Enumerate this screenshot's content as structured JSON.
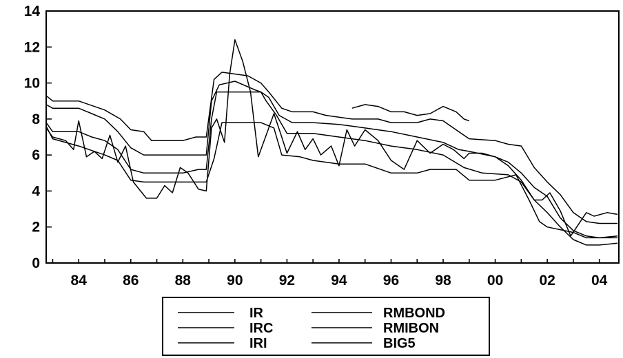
{
  "chart_data": {
    "type": "line",
    "title": "",
    "xlabel": "",
    "ylabel": "",
    "xlim": [
      1982.75,
      2004.75
    ],
    "ylim": [
      0,
      14
    ],
    "grid": false,
    "legend_position": "bottom-center",
    "x_tick_labels": [
      "84",
      "86",
      "88",
      "90",
      "92",
      "94",
      "96",
      "98",
      "00",
      "02",
      "04"
    ],
    "x_tick_values": [
      1984,
      1986,
      1988,
      1990,
      1992,
      1994,
      1996,
      1998,
      2000,
      2002,
      2004
    ],
    "y_tick_labels": [
      "0",
      "2",
      "4",
      "6",
      "8",
      "10",
      "12",
      "14"
    ],
    "y_tick_values": [
      0,
      2,
      4,
      6,
      8,
      10,
      12,
      14
    ],
    "line_color": "#000000",
    "series": [
      {
        "name": "IR",
        "points": [
          [
            1982.75,
            9.3
          ],
          [
            1983.0,
            9.0
          ],
          [
            1984.0,
            9.0
          ],
          [
            1985.0,
            8.5
          ],
          [
            1985.6,
            8.0
          ],
          [
            1986.0,
            7.4
          ],
          [
            1986.5,
            7.3
          ],
          [
            1986.8,
            6.8
          ],
          [
            1988.0,
            6.8
          ],
          [
            1988.5,
            7.0
          ],
          [
            1988.9,
            7.0
          ],
          [
            1989.2,
            10.2
          ],
          [
            1989.5,
            10.6
          ],
          [
            1990.5,
            10.4
          ],
          [
            1991.0,
            10.0
          ],
          [
            1991.3,
            9.5
          ],
          [
            1991.8,
            8.6
          ],
          [
            1992.2,
            8.4
          ],
          [
            1993.0,
            8.4
          ],
          [
            1993.5,
            8.2
          ],
          [
            1994.5,
            8.0
          ],
          [
            1995.5,
            8.0
          ],
          [
            1996.0,
            7.8
          ],
          [
            1997.0,
            7.8
          ],
          [
            1997.5,
            8.0
          ],
          [
            1998.0,
            7.9
          ],
          [
            1998.6,
            7.3
          ],
          [
            1999.0,
            6.9
          ],
          [
            2000.0,
            6.8
          ],
          [
            2000.5,
            6.6
          ],
          [
            2001.0,
            6.5
          ],
          [
            2001.5,
            5.3
          ],
          [
            2002.0,
            4.5
          ],
          [
            2002.5,
            3.8
          ],
          [
            2003.0,
            2.8
          ],
          [
            2003.5,
            2.3
          ],
          [
            2004.0,
            2.2
          ],
          [
            2004.7,
            2.2
          ]
        ]
      },
      {
        "name": "IRC",
        "points": [
          [
            1982.75,
            8.8
          ],
          [
            1983.0,
            8.6
          ],
          [
            1984.0,
            8.6
          ],
          [
            1984.5,
            8.3
          ],
          [
            1985.0,
            8.0
          ],
          [
            1985.5,
            7.3
          ],
          [
            1986.0,
            6.4
          ],
          [
            1986.5,
            6.0
          ],
          [
            1987.0,
            6.0
          ],
          [
            1988.0,
            6.0
          ],
          [
            1988.9,
            6.0
          ],
          [
            1989.1,
            9.0
          ],
          [
            1989.4,
            9.9
          ],
          [
            1990.0,
            10.1
          ],
          [
            1990.8,
            9.6
          ],
          [
            1991.0,
            9.5
          ],
          [
            1991.3,
            9.2
          ],
          [
            1991.7,
            8.2
          ],
          [
            1992.2,
            7.8
          ],
          [
            1993.0,
            7.8
          ],
          [
            1994.0,
            7.7
          ],
          [
            1995.0,
            7.5
          ],
          [
            1996.0,
            7.3
          ],
          [
            1997.0,
            7.0
          ],
          [
            1998.0,
            6.7
          ],
          [
            1998.6,
            6.3
          ],
          [
            1999.0,
            6.2
          ],
          [
            2000.0,
            5.9
          ],
          [
            2000.5,
            5.6
          ],
          [
            2001.0,
            5.0
          ],
          [
            2001.5,
            4.2
          ],
          [
            2002.0,
            3.7
          ],
          [
            2002.5,
            2.5
          ],
          [
            2003.0,
            1.8
          ],
          [
            2003.5,
            1.5
          ],
          [
            2004.0,
            1.4
          ],
          [
            2004.7,
            1.4
          ]
        ]
      },
      {
        "name": "IRI",
        "points": [
          [
            1982.75,
            7.8
          ],
          [
            1983.0,
            7.3
          ],
          [
            1984.0,
            7.3
          ],
          [
            1984.5,
            7.0
          ],
          [
            1985.0,
            6.8
          ],
          [
            1985.5,
            6.3
          ],
          [
            1986.0,
            5.2
          ],
          [
            1986.5,
            5.0
          ],
          [
            1988.0,
            5.0
          ],
          [
            1988.6,
            5.2
          ],
          [
            1988.9,
            5.2
          ],
          [
            1989.1,
            8.0
          ],
          [
            1989.3,
            9.5
          ],
          [
            1991.0,
            9.5
          ],
          [
            1991.2,
            9.0
          ],
          [
            1991.6,
            8.2
          ],
          [
            1992.0,
            7.2
          ],
          [
            1993.0,
            7.2
          ],
          [
            1994.0,
            7.0
          ],
          [
            1995.0,
            6.8
          ],
          [
            1996.0,
            6.5
          ],
          [
            1997.0,
            6.3
          ],
          [
            1998.0,
            6.0
          ],
          [
            1998.8,
            5.3
          ],
          [
            1999.5,
            5.0
          ],
          [
            2000.5,
            4.9
          ],
          [
            2001.0,
            4.5
          ],
          [
            2001.5,
            3.5
          ],
          [
            2002.0,
            2.8
          ],
          [
            2002.5,
            2.0
          ],
          [
            2003.0,
            1.3
          ],
          [
            2003.5,
            1.0
          ],
          [
            2004.0,
            1.0
          ],
          [
            2004.7,
            1.1
          ]
        ]
      },
      {
        "name": "RMBOND",
        "points": [
          [
            1982.75,
            7.5
          ],
          [
            1983.0,
            7.0
          ],
          [
            1983.5,
            6.8
          ],
          [
            1983.8,
            6.3
          ],
          [
            1984.0,
            7.9
          ],
          [
            1984.3,
            5.9
          ],
          [
            1984.6,
            6.2
          ],
          [
            1984.9,
            5.8
          ],
          [
            1985.2,
            7.1
          ],
          [
            1985.5,
            5.6
          ],
          [
            1985.8,
            6.5
          ],
          [
            1986.1,
            4.5
          ],
          [
            1986.6,
            3.6
          ],
          [
            1987.0,
            3.6
          ],
          [
            1987.3,
            4.3
          ],
          [
            1987.6,
            3.9
          ],
          [
            1987.9,
            5.3
          ],
          [
            1988.2,
            5.0
          ],
          [
            1988.6,
            4.1
          ],
          [
            1988.9,
            4.0
          ],
          [
            1989.1,
            7.5
          ],
          [
            1989.3,
            8.0
          ],
          [
            1989.6,
            6.7
          ],
          [
            1989.8,
            10.5
          ],
          [
            1990.0,
            12.4
          ],
          [
            1990.3,
            11.2
          ],
          [
            1990.6,
            9.5
          ],
          [
            1990.9,
            5.9
          ],
          [
            1991.2,
            7.1
          ],
          [
            1991.5,
            8.3
          ],
          [
            1991.8,
            7.0
          ],
          [
            1992.0,
            6.1
          ],
          [
            1992.4,
            7.3
          ],
          [
            1992.7,
            6.3
          ],
          [
            1993.0,
            6.9
          ],
          [
            1993.3,
            6.0
          ],
          [
            1993.7,
            6.5
          ],
          [
            1994.0,
            5.4
          ],
          [
            1994.3,
            7.4
          ],
          [
            1994.6,
            6.5
          ],
          [
            1995.0,
            7.4
          ],
          [
            1995.5,
            6.8
          ],
          [
            1996.0,
            5.7
          ],
          [
            1996.5,
            5.2
          ],
          [
            1997.0,
            6.8
          ],
          [
            1997.5,
            6.1
          ],
          [
            1998.0,
            6.6
          ],
          [
            1998.4,
            6.3
          ],
          [
            1998.8,
            5.8
          ],
          [
            1999.0,
            6.1
          ],
          [
            1999.5,
            6.1
          ],
          [
            2000.0,
            5.9
          ],
          [
            2000.5,
            5.4
          ],
          [
            2001.0,
            4.6
          ],
          [
            2001.5,
            3.5
          ],
          [
            2001.8,
            3.5
          ],
          [
            2002.1,
            3.9
          ],
          [
            2002.5,
            2.9
          ],
          [
            2002.9,
            1.5
          ],
          [
            2003.5,
            2.8
          ],
          [
            2003.8,
            2.6
          ],
          [
            2004.3,
            2.8
          ],
          [
            2004.7,
            2.7
          ]
        ]
      },
      {
        "name": "RMIBON",
        "points": [
          [
            1994.5,
            8.6
          ],
          [
            1995.0,
            8.8
          ],
          [
            1995.5,
            8.7
          ],
          [
            1996.0,
            8.4
          ],
          [
            1996.5,
            8.4
          ],
          [
            1997.0,
            8.2
          ],
          [
            1997.5,
            8.3
          ],
          [
            1998.0,
            8.7
          ],
          [
            1998.5,
            8.4
          ],
          [
            1998.8,
            8.0
          ],
          [
            1999.0,
            7.9
          ]
        ]
      },
      {
        "name": "BIG5",
        "points": [
          [
            1982.75,
            7.6
          ],
          [
            1983.0,
            6.9
          ],
          [
            1984.0,
            6.5
          ],
          [
            1985.0,
            6.0
          ],
          [
            1985.5,
            5.7
          ],
          [
            1986.0,
            4.6
          ],
          [
            1986.5,
            4.5
          ],
          [
            1987.5,
            4.5
          ],
          [
            1988.9,
            4.5
          ],
          [
            1989.2,
            5.8
          ],
          [
            1989.5,
            7.8
          ],
          [
            1991.0,
            7.8
          ],
          [
            1991.5,
            7.5
          ],
          [
            1991.8,
            6.0
          ],
          [
            1992.5,
            5.9
          ],
          [
            1993.0,
            5.7
          ],
          [
            1994.0,
            5.5
          ],
          [
            1995.0,
            5.5
          ],
          [
            1996.0,
            5.0
          ],
          [
            1997.0,
            5.0
          ],
          [
            1997.5,
            5.2
          ],
          [
            1998.5,
            5.2
          ],
          [
            1999.0,
            4.6
          ],
          [
            2000.0,
            4.6
          ],
          [
            2000.8,
            4.9
          ],
          [
            2001.3,
            3.5
          ],
          [
            2001.7,
            2.3
          ],
          [
            2002.0,
            2.0
          ],
          [
            2003.0,
            1.7
          ],
          [
            2003.5,
            1.4
          ],
          [
            2004.0,
            1.4
          ],
          [
            2004.7,
            1.5
          ]
        ]
      }
    ]
  }
}
